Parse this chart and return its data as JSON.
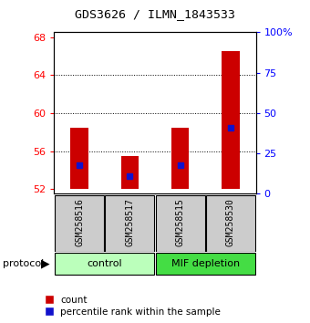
{
  "title": "GDS3626 / ILMN_1843533",
  "samples": [
    "GSM258516",
    "GSM258517",
    "GSM258515",
    "GSM258530"
  ],
  "bar_bottoms": [
    52,
    52,
    52,
    52
  ],
  "bar_tops": [
    58.5,
    55.5,
    58.5,
    66.5
  ],
  "blue_markers": [
    54.5,
    53.4,
    54.5,
    58.5
  ],
  "bar_color": "#cc0000",
  "blue_color": "#1111cc",
  "ylim_left": [
    51.5,
    68.5
  ],
  "ylim_right": [
    0,
    100
  ],
  "yticks_left": [
    52,
    56,
    60,
    64,
    68
  ],
  "yticks_right": [
    0,
    25,
    50,
    75,
    100
  ],
  "ytick_labels_right": [
    "0",
    "25",
    "50",
    "75",
    "100%"
  ],
  "grid_lines": [
    56,
    60,
    64
  ],
  "control_color": "#bbffbb",
  "mif_color": "#44dd44",
  "sample_box_color": "#cccccc",
  "legend_red_label": "count",
  "legend_blue_label": "percentile rank within the sample",
  "protocol_label": "protocol",
  "control_label": "control",
  "mif_label": "MIF depletion",
  "bar_width": 0.35
}
